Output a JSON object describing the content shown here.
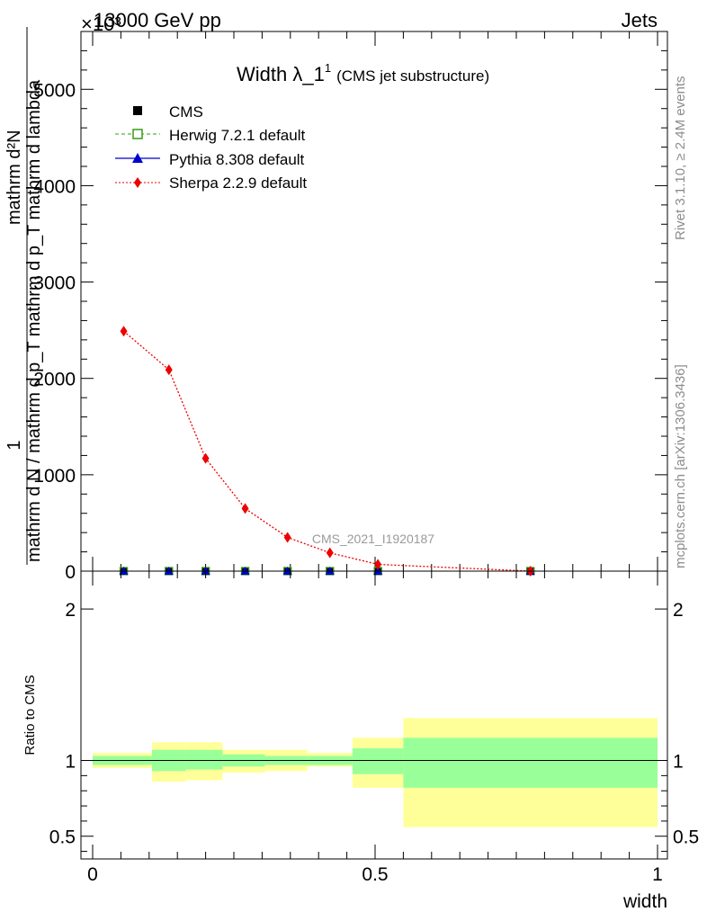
{
  "header": {
    "left": "13000 GeV pp",
    "right": "Jets",
    "exponent": "×10³"
  },
  "side_texts": {
    "rivet": "Rivet 3.1.10, ≥ 2.4M events",
    "mcplots": "mcplots.cern.ch [arXiv:1306.3436]"
  },
  "chart_data": [
    {
      "type": "line",
      "title_main": "Width λ_1",
      "title_sup": "1",
      "title_sub": "(CMS jet substructure)",
      "analysis_label": "CMS_2021_I1920187",
      "ylabel_numerator": "1",
      "ylabel_denominator": "mathrm d N / mathrm d p_T mathrm d p_T mathrm d lambda",
      "ylabel_top": "mathrm d²N",
      "ylim": [
        0,
        5600
      ],
      "x": [
        0.055,
        0.135,
        0.2,
        0.27,
        0.345,
        0.42,
        0.505,
        0.775
      ],
      "series": [
        {
          "name": "CMS",
          "color": "#000000",
          "values": [
            0,
            0,
            0,
            0,
            0,
            0,
            0,
            0
          ]
        },
        {
          "name": "Herwig 7.2.1 default",
          "color": "#3a9a1a",
          "values": [
            0,
            0,
            0,
            0,
            0,
            0,
            0,
            0
          ]
        },
        {
          "name": "Pythia 8.308 default",
          "color": "#0000cc",
          "values": [
            0,
            0,
            0,
            0,
            0,
            0,
            0,
            0
          ]
        },
        {
          "name": "Sherpa 2.2.9 default",
          "color": "#ee0000",
          "values": [
            2490,
            2090,
            1170,
            650,
            350,
            190,
            70,
            0
          ]
        }
      ],
      "yticks": [
        0,
        1000,
        2000,
        3000,
        4000,
        5000
      ],
      "ytick_labels": [
        "0",
        "1000",
        "2000",
        "3000",
        "4000",
        "5000"
      ]
    },
    {
      "type": "area",
      "ylabel": "Ratio to CMS",
      "xlabel": "width",
      "xlim": [
        0,
        1
      ],
      "ylim": [
        0.35,
        2.25
      ],
      "xticks": [
        0,
        0.5,
        1
      ],
      "xtick_labels": [
        "0",
        "0.5",
        "1"
      ],
      "yticks": [
        0.5,
        1,
        2
      ],
      "ytick_labels": [
        "0.5",
        "1",
        "2"
      ],
      "bins": [
        {
          "lo": 0.0,
          "hi": 0.105,
          "stat": [
            0.97,
            1.03
          ],
          "tot": [
            0.95,
            1.05
          ]
        },
        {
          "lo": 0.105,
          "hi": 0.165,
          "stat": [
            0.93,
            1.07
          ],
          "tot": [
            0.86,
            1.12
          ]
        },
        {
          "lo": 0.165,
          "hi": 0.23,
          "stat": [
            0.94,
            1.07
          ],
          "tot": [
            0.87,
            1.12
          ]
        },
        {
          "lo": 0.23,
          "hi": 0.305,
          "stat": [
            0.96,
            1.04
          ],
          "tot": [
            0.92,
            1.07
          ]
        },
        {
          "lo": 0.305,
          "hi": 0.38,
          "stat": [
            0.97,
            1.03
          ],
          "tot": [
            0.93,
            1.07
          ]
        },
        {
          "lo": 0.38,
          "hi": 0.46,
          "stat": [
            0.97,
            1.03
          ],
          "tot": [
            0.96,
            1.05
          ]
        },
        {
          "lo": 0.46,
          "hi": 0.55,
          "stat": [
            0.91,
            1.08
          ],
          "tot": [
            0.82,
            1.15
          ]
        },
        {
          "lo": 0.55,
          "hi": 1.0,
          "stat": [
            0.82,
            1.15
          ],
          "tot": [
            0.56,
            1.28
          ]
        }
      ],
      "band_colors": {
        "stat": "#99ff99",
        "total": "#ffff99"
      }
    }
  ]
}
